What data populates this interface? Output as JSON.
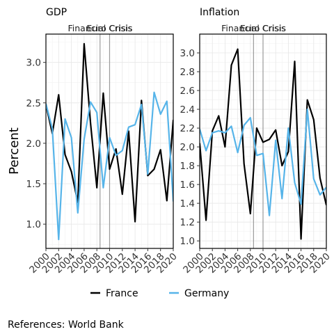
{
  "ylabel": "Percent",
  "source": "References: World Bank",
  "legend": {
    "position": "bottom",
    "entries": [
      {
        "name": "France",
        "color": "#000000"
      },
      {
        "name": "Germany",
        "color": "#56B4E9"
      }
    ]
  },
  "chart_data": [
    {
      "type": "line",
      "title": "GDP",
      "x": [
        2000,
        2001,
        2002,
        2003,
        2004,
        2005,
        2006,
        2007,
        2008,
        2009,
        2010,
        2011,
        2012,
        2013,
        2014,
        2015,
        2016,
        2017,
        2018,
        2019,
        2020
      ],
      "xticks": [
        "2000",
        "2002",
        "2004",
        "2006",
        "2008",
        "2010",
        "2012",
        "2014",
        "2016",
        "2018",
        "2020"
      ],
      "xlim": [
        2000,
        2020
      ],
      "ylim": [
        0.7,
        3.35
      ],
      "yticks": [
        "1.0",
        "1.5",
        "2.0",
        "2.5",
        "3.0"
      ],
      "grid": true,
      "annotations": [
        {
          "label": "Financial Crisis",
          "x": 2008.5
        },
        {
          "label": "Euro Crisis",
          "x": 2010
        }
      ],
      "series": [
        {
          "name": "France",
          "color": "#000000",
          "values": [
            2.48,
            2.12,
            2.6,
            1.86,
            1.65,
            1.27,
            3.23,
            2.25,
            1.45,
            2.62,
            1.68,
            1.93,
            1.37,
            2.15,
            1.03,
            2.53,
            1.6,
            1.68,
            1.92,
            1.29,
            2.29
          ]
        },
        {
          "name": "Germany",
          "color": "#56B4E9",
          "values": [
            2.49,
            2.18,
            0.81,
            2.3,
            2.07,
            1.14,
            2.05,
            2.51,
            2.38,
            1.45,
            2.07,
            1.85,
            1.91,
            2.2,
            2.23,
            2.48,
            1.62,
            2.63,
            2.36,
            2.52,
            1.28
          ]
        }
      ]
    },
    {
      "type": "line",
      "title": "Inflation",
      "x": [
        2000,
        2001,
        2002,
        2003,
        2004,
        2005,
        2006,
        2007,
        2008,
        2009,
        2010,
        2011,
        2012,
        2013,
        2014,
        2015,
        2016,
        2017,
        2018,
        2019,
        2020
      ],
      "xticks": [
        "2000",
        "2002",
        "2004",
        "2006",
        "2008",
        "2010",
        "2012",
        "2014",
        "2016",
        "2018",
        "2020"
      ],
      "xlim": [
        2000,
        2020
      ],
      "ylim": [
        0.92,
        3.2
      ],
      "yticks": [
        "1.0",
        "1.2",
        "1.4",
        "1.6",
        "1.8",
        "2.0",
        "2.2",
        "2.4",
        "2.6",
        "2.8",
        "3.0"
      ],
      "grid": true,
      "annotations": [
        {
          "label": "Financial Crisis",
          "x": 2008.5
        },
        {
          "label": "Euro Crisis",
          "x": 2010
        }
      ],
      "series": [
        {
          "name": "France",
          "color": "#000000",
          "values": [
            2.04,
            1.22,
            2.17,
            2.33,
            2.0,
            2.87,
            3.04,
            1.82,
            1.29,
            2.2,
            2.05,
            2.08,
            2.18,
            1.8,
            1.95,
            2.91,
            1.02,
            2.5,
            2.29,
            1.67,
            1.38
          ]
        },
        {
          "name": "Germany",
          "color": "#56B4E9",
          "values": [
            2.19,
            1.96,
            2.15,
            2.17,
            2.15,
            2.22,
            1.94,
            2.23,
            2.31,
            1.91,
            1.93,
            1.27,
            2.07,
            1.45,
            2.2,
            1.62,
            1.39,
            2.4,
            1.66,
            1.49,
            1.57
          ]
        }
      ]
    }
  ]
}
